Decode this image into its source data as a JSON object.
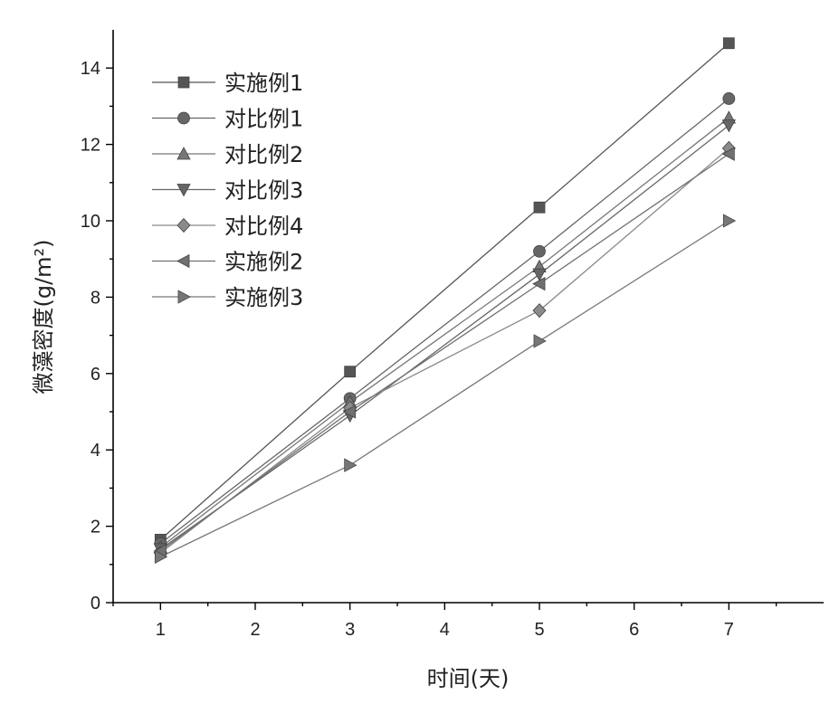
{
  "chart_data": {
    "type": "line",
    "xlabel": "时间(天)",
    "ylabel": "微藻密度(g/m²)",
    "xlim": [
      0.5,
      8.0
    ],
    "ylim": [
      0,
      15
    ],
    "xticks": [
      1,
      2,
      3,
      4,
      5,
      6,
      7
    ],
    "yticks": [
      0,
      2,
      4,
      6,
      8,
      10,
      12,
      14
    ],
    "grid": false,
    "legend_position": "top-left",
    "x": [
      1,
      3,
      5,
      7
    ],
    "series": [
      {
        "name": "实施例1",
        "marker": "square",
        "color": "#555555",
        "values": [
          1.65,
          6.05,
          10.35,
          14.65
        ]
      },
      {
        "name": "对比例1",
        "marker": "circle",
        "color": "#666666",
        "values": [
          1.55,
          5.35,
          9.2,
          13.2
        ]
      },
      {
        "name": "对比例2",
        "marker": "triangle-up",
        "color": "#777777",
        "values": [
          1.45,
          5.25,
          8.8,
          12.7
        ]
      },
      {
        "name": "对比例3",
        "marker": "triangle-down",
        "color": "#666666",
        "values": [
          1.4,
          4.9,
          8.6,
          12.5
        ]
      },
      {
        "name": "对比例4",
        "marker": "diamond",
        "color": "#8a8a8a",
        "values": [
          1.3,
          5.1,
          7.65,
          11.9
        ]
      },
      {
        "name": "实施例2",
        "marker": "triangle-left",
        "color": "#707070",
        "values": [
          1.35,
          5.0,
          8.35,
          11.75
        ]
      },
      {
        "name": "实施例3",
        "marker": "triangle-right",
        "color": "#777777",
        "values": [
          1.2,
          3.6,
          6.85,
          10.0
        ]
      }
    ]
  }
}
